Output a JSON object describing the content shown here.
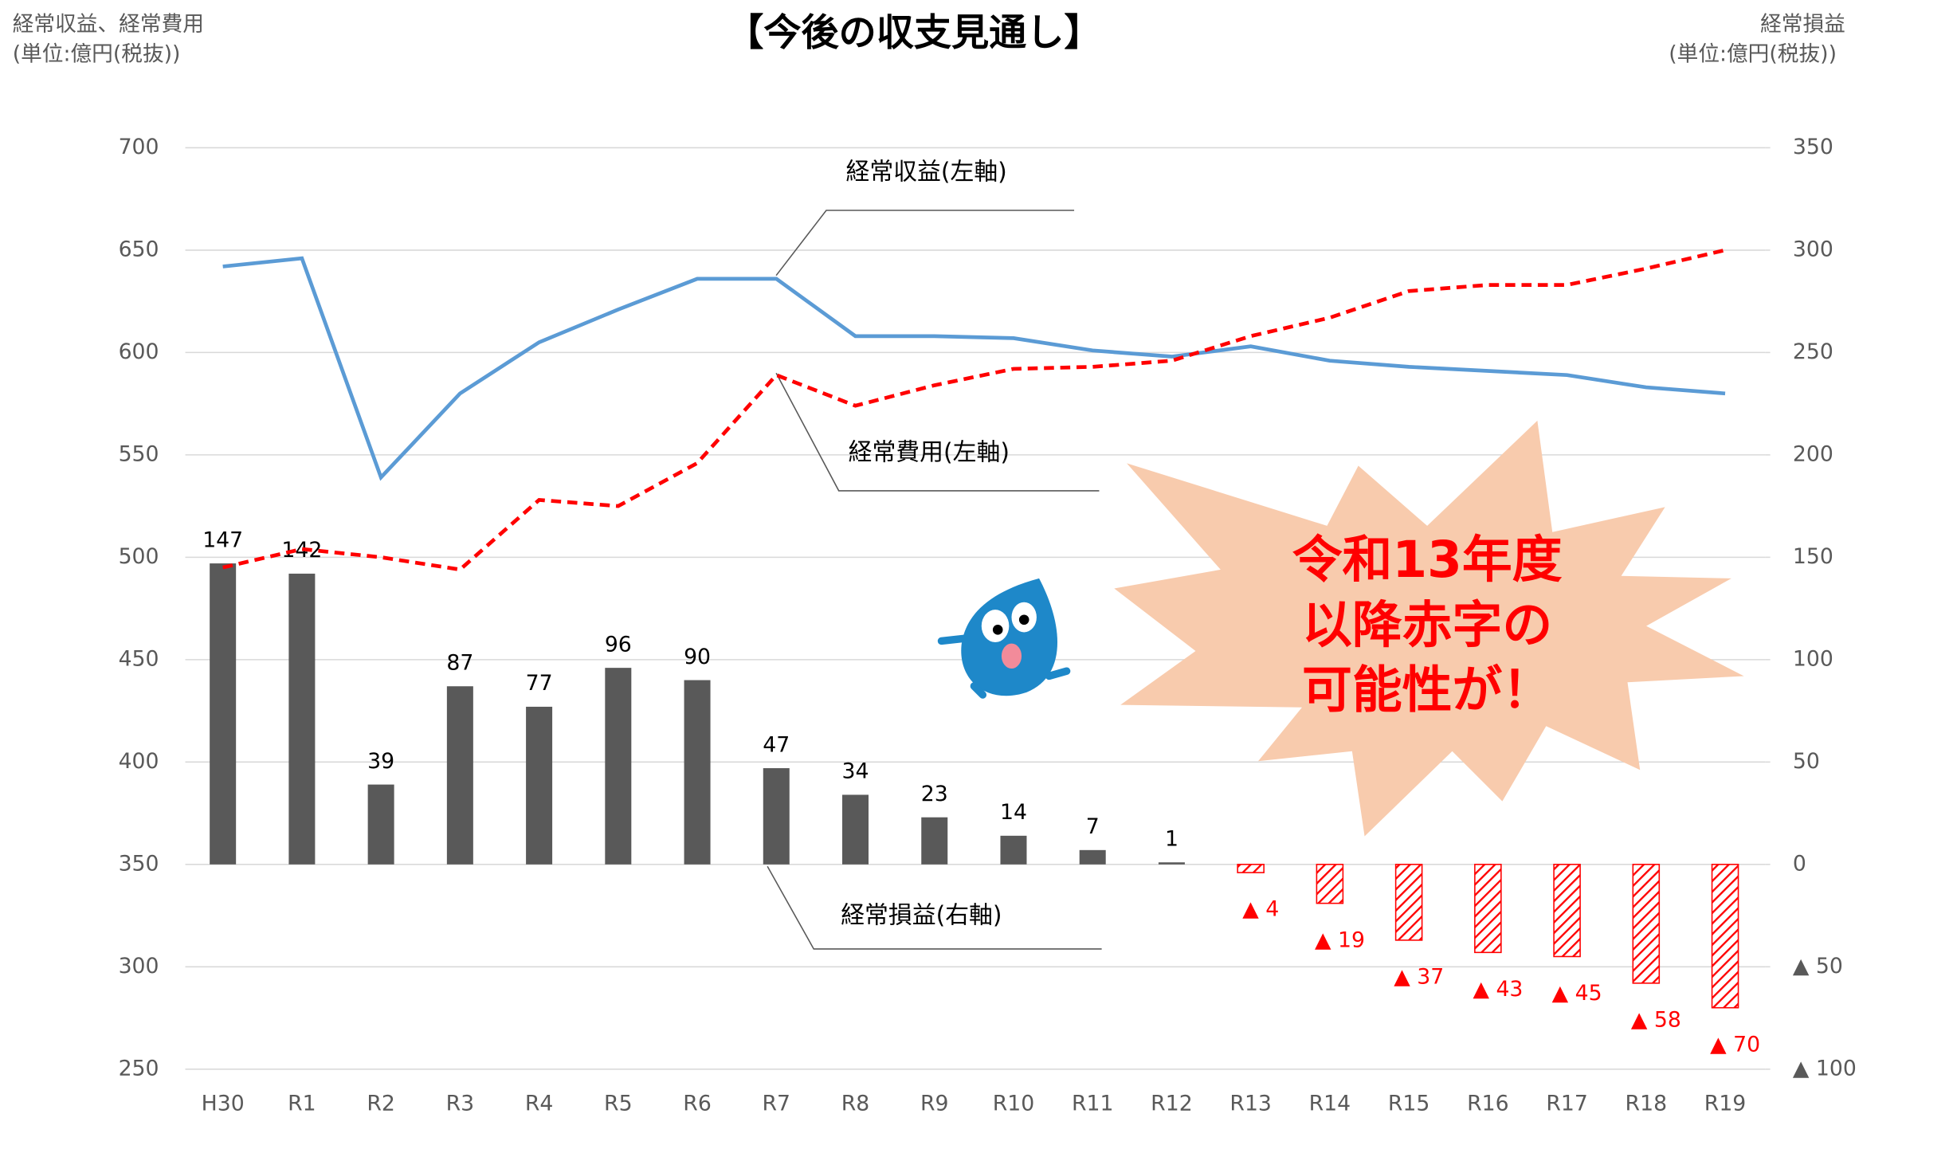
{
  "chart_data": {
    "type": "combo",
    "title": "【今後の収支見通し】",
    "y_label": [
      "経常収益、経常費用",
      "(単位:億円(税抜))"
    ],
    "y2_label": [
      "経常損益",
      "(単位:億円(税抜))"
    ],
    "callout": [
      "令和13年度",
      "以降赤字の",
      "可能性が！"
    ],
    "categories": [
      "H30",
      "R1",
      "R2",
      "R3",
      "R4",
      "R5",
      "R6",
      "R7",
      "R8",
      "R9",
      "R10",
      "R11",
      "R12",
      "R13",
      "R14",
      "R15",
      "R16",
      "R17",
      "R18",
      "R19"
    ],
    "series": [
      {
        "name": "経常収益(左軸)",
        "type": "line",
        "color": "#5b9bd5",
        "dashed": false,
        "values": [
          642,
          646,
          539,
          580,
          605,
          621,
          636,
          636,
          608,
          608,
          607,
          601,
          598,
          603,
          596,
          593,
          591,
          589,
          583,
          580
        ]
      },
      {
        "name": "経常費用(左軸)",
        "type": "line",
        "color": "#ff0000",
        "dashed": true,
        "values": [
          495,
          504,
          500,
          494,
          528,
          525,
          546,
          589,
          574,
          584,
          592,
          593,
          596,
          608,
          617,
          630,
          633,
          633,
          641,
          650
        ]
      },
      {
        "name": "経常損益(右軸)",
        "type": "bar",
        "axis": "y2",
        "color": "#595959",
        "negative_color": "#ff0000",
        "values": [
          147,
          142,
          39,
          87,
          77,
          96,
          90,
          47,
          34,
          23,
          14,
          7,
          1,
          -4,
          -19,
          -37,
          -43,
          -45,
          -58,
          -70
        ],
        "value_labels": [
          "147",
          "142",
          "39",
          "87",
          "77",
          "96",
          "90",
          "47",
          "34",
          "23",
          "14",
          "7",
          "1",
          "▲ 4",
          "▲ 19",
          "▲ 37",
          "▲ 43",
          "▲ 45",
          "▲ 58",
          "▲ 70"
        ]
      }
    ],
    "ylim": [
      250,
      700
    ],
    "yticks": [
      250,
      300,
      350,
      400,
      450,
      500,
      550,
      600,
      650,
      700
    ],
    "y2lim": [
      -100,
      350
    ],
    "y2ticks": [
      {
        "value": -100,
        "label": "▲ 100"
      },
      {
        "value": -50,
        "label": "▲ 50"
      },
      0,
      50,
      100,
      150,
      200,
      250,
      300,
      350
    ],
    "grid": true
  }
}
